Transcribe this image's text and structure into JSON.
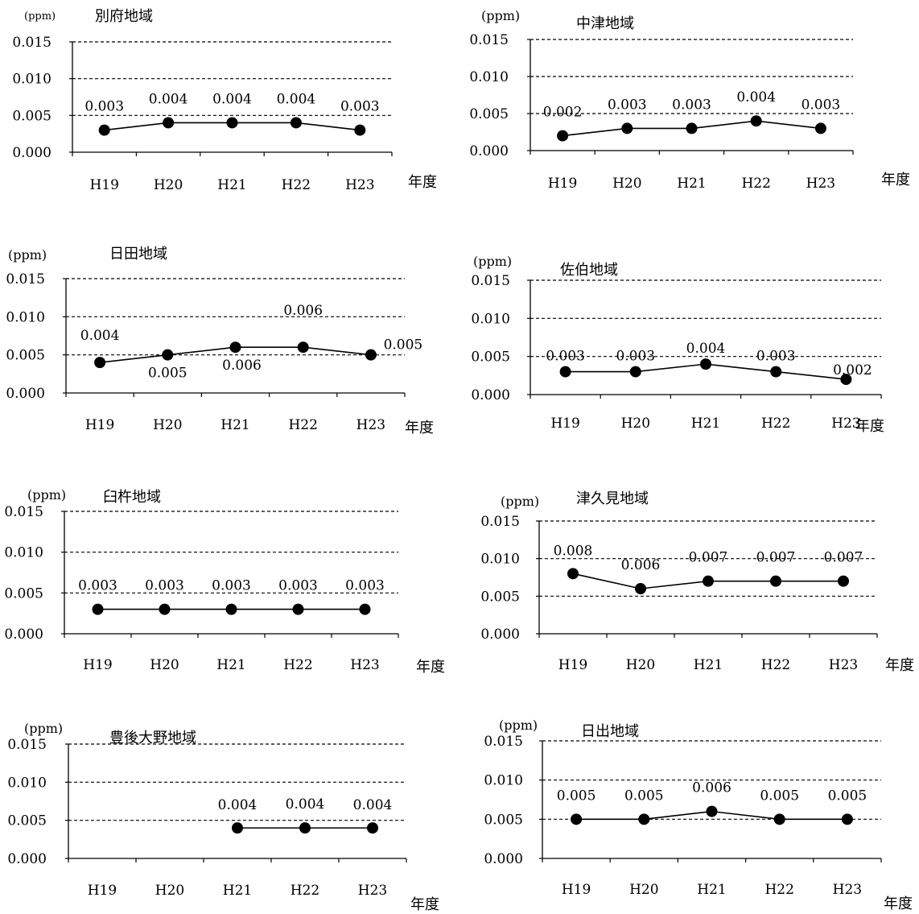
{
  "chart_data": [
    {
      "type": "line",
      "title": "別府地域",
      "ylabel": "(ppm)",
      "xlabel": "年度",
      "categories": [
        "H19",
        "H20",
        "H21",
        "H22",
        "H23"
      ],
      "yticks": [
        "0.015",
        "0.010",
        "0.005",
        "0.000"
      ],
      "ylim": [
        0,
        0.015
      ],
      "grid": "dashed",
      "values": [
        0.003,
        0.004,
        0.004,
        0.004,
        0.003
      ],
      "data_labels": [
        "0.003",
        "0.004",
        "0.004",
        "0.004",
        "0.003"
      ]
    },
    {
      "type": "line",
      "title": "中津地域",
      "ylabel": "(ppm)",
      "xlabel": "年度",
      "categories": [
        "H19",
        "H20",
        "H21",
        "H22",
        "H23"
      ],
      "yticks": [
        "0.015",
        "0.010",
        "0.005",
        "0.000"
      ],
      "ylim": [
        0,
        0.015
      ],
      "grid": "dashed",
      "values": [
        0.002,
        0.003,
        0.003,
        0.004,
        0.003
      ],
      "data_labels": [
        "0.002",
        "0.003",
        "0.003",
        "0.004",
        "0.003"
      ]
    },
    {
      "type": "line",
      "title": "日田地域",
      "ylabel": "(ppm)",
      "xlabel": "年度",
      "categories": [
        "H19",
        "H20",
        "H21",
        "H22",
        "H23"
      ],
      "yticks": [
        "0.015",
        "0.010",
        "0.005",
        "0.000"
      ],
      "ylim": [
        0,
        0.015
      ],
      "grid": "dashed",
      "values": [
        0.004,
        0.005,
        0.006,
        0.006,
        0.005
      ],
      "data_labels": [
        "0.004",
        "0.005",
        "0.006",
        "0.006",
        "0.005"
      ]
    },
    {
      "type": "line",
      "title": "佐伯地域",
      "ylabel": "(ppm)",
      "xlabel": "年度",
      "categories": [
        "H19",
        "H20",
        "H21",
        "H22",
        "H23"
      ],
      "yticks": [
        "0.015",
        "0.010",
        "0.005",
        "0.000"
      ],
      "ylim": [
        0,
        0.015
      ],
      "grid": "dashed",
      "values": [
        0.003,
        0.003,
        0.004,
        0.003,
        0.002
      ],
      "data_labels": [
        "0.003",
        "0.003",
        "0.004",
        "0.003",
        "0.002"
      ]
    },
    {
      "type": "line",
      "title": "臼杵地域",
      "ylabel": "(ppm)",
      "xlabel": "年度",
      "categories": [
        "H19",
        "H20",
        "H21",
        "H22",
        "H23"
      ],
      "yticks": [
        "0.015",
        "0.010",
        "0.005",
        "0.000"
      ],
      "ylim": [
        0,
        0.015
      ],
      "grid": "dashed",
      "values": [
        0.003,
        0.003,
        0.003,
        0.003,
        0.003
      ],
      "data_labels": [
        "0.003",
        "0.003",
        "0.003",
        "0.003",
        "0.003"
      ]
    },
    {
      "type": "line",
      "title": "津久見地域",
      "ylabel": "(ppm)",
      "xlabel": "年度",
      "categories": [
        "H19",
        "H20",
        "H21",
        "H22",
        "H23"
      ],
      "yticks": [
        "0.015",
        "0.010",
        "0.005",
        "0.000"
      ],
      "ylim": [
        0,
        0.015
      ],
      "grid": "dashed",
      "values": [
        0.008,
        0.006,
        0.007,
        0.007,
        0.007
      ],
      "data_labels": [
        "0.008",
        "0.006",
        "0.007",
        "0.007",
        "0.007"
      ]
    },
    {
      "type": "line",
      "title": "豊後大野地域",
      "ylabel": "(ppm)",
      "xlabel": "年度",
      "categories": [
        "H19",
        "H20",
        "H21",
        "H22",
        "H23"
      ],
      "yticks": [
        "0.015",
        "0.010",
        "0.005",
        "0.000"
      ],
      "ylim": [
        0,
        0.015
      ],
      "grid": "dashed",
      "values": [
        null,
        null,
        0.004,
        0.004,
        0.004
      ],
      "data_labels": [
        null,
        null,
        "0.004",
        "0.004",
        "0.004"
      ]
    },
    {
      "type": "line",
      "title": "日出地域",
      "ylabel": "(ppm)",
      "xlabel": "年度",
      "categories": [
        "H19",
        "H20",
        "H21",
        "H22",
        "H23"
      ],
      "yticks": [
        "0.015",
        "0.010",
        "0.005",
        "0.000"
      ],
      "ylim": [
        0,
        0.015
      ],
      "grid": "dashed",
      "values": [
        0.005,
        0.005,
        0.006,
        0.005,
        0.005
      ],
      "data_labels": [
        "0.005",
        "0.005",
        "0.006",
        "0.005",
        "0.005"
      ]
    }
  ]
}
